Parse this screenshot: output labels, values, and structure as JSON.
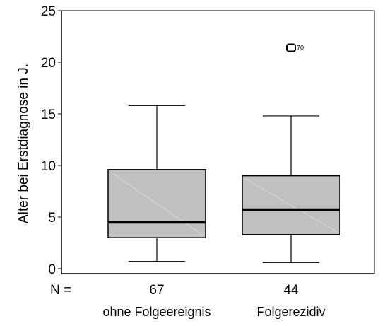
{
  "chart_data": {
    "type": "boxplot",
    "ylabel": "Alter bei Erstdiagnose in J.",
    "ylim": [
      0,
      25
    ],
    "yticks": [
      0,
      5,
      10,
      15,
      20,
      25
    ],
    "n_label": "N =",
    "categories": [
      "ohne Folgeereignis",
      "Folgerezidiv"
    ],
    "boxes": [
      {
        "category": "ohne Folgeereignis",
        "n": "67",
        "min": 0.7,
        "q1": 3.0,
        "median": 4.5,
        "q3": 9.6,
        "max": 15.8,
        "outliers": []
      },
      {
        "category": "Folgerezidiv",
        "n": "44",
        "min": 0.6,
        "q1": 3.3,
        "median": 5.7,
        "q3": 9.0,
        "max": 14.8,
        "outliers": [
          {
            "value": 21.4,
            "label": "70"
          }
        ]
      }
    ],
    "box_fill": "#c0c0c0",
    "grid": false
  }
}
